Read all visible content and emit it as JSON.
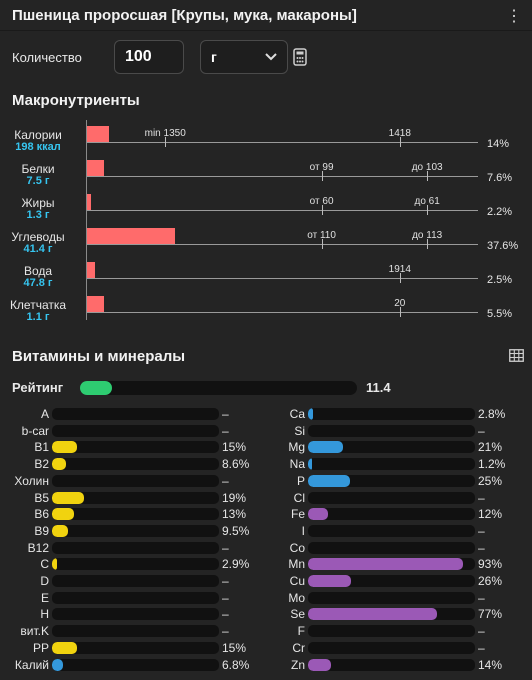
{
  "header": {
    "title": "Пшеница проросшая [Крупы, мука, макароны]"
  },
  "quantity": {
    "label": "Количество",
    "value": "100",
    "unit": "г"
  },
  "macros": {
    "title": "Макронутриенты",
    "items": [
      {
        "name": "Калории",
        "value": "198 ккал",
        "fraction": 0.056,
        "pct": "14%",
        "marks": [
          {
            "label": "min 1350",
            "pos": 0.2
          },
          {
            "label": "1418",
            "pos": 0.8
          }
        ]
      },
      {
        "name": "Белки",
        "value": "7.5 г",
        "fraction": 0.043,
        "pct": "7.6%",
        "marks": [
          {
            "label": "от 99",
            "pos": 0.6
          },
          {
            "label": "до 103",
            "pos": 0.87
          }
        ]
      },
      {
        "name": "Жиры",
        "value": "1.3 г",
        "fraction": 0.01,
        "pct": "2.2%",
        "marks": [
          {
            "label": "от 60",
            "pos": 0.6
          },
          {
            "label": "до 61",
            "pos": 0.87
          }
        ]
      },
      {
        "name": "Углеводы",
        "value": "41.4 г",
        "fraction": 0.228,
        "pct": "37.6%",
        "marks": [
          {
            "label": "от 110",
            "pos": 0.6
          },
          {
            "label": "до 113",
            "pos": 0.87
          }
        ]
      },
      {
        "name": "Вода",
        "value": "47.8 г",
        "fraction": 0.02,
        "pct": "2.5%",
        "marks": [
          {
            "label": "1914",
            "pos": 0.8
          }
        ]
      },
      {
        "name": "Клетчатка",
        "value": "1.1 г",
        "fraction": 0.043,
        "pct": "5.5%",
        "marks": [
          {
            "label": "20",
            "pos": 0.8
          }
        ]
      }
    ]
  },
  "vitamins": {
    "title": "Витамины и минералы",
    "rating": {
      "label": "Рейтинг",
      "value": "11.4",
      "fraction": 0.115,
      "color": "#2ecc71"
    },
    "left": [
      {
        "name": "A",
        "pct": "–",
        "fraction": 0
      },
      {
        "name": "b-car",
        "pct": "–",
        "fraction": 0
      },
      {
        "name": "B1",
        "pct": "15%",
        "fraction": 0.15,
        "color": "#f1d30f"
      },
      {
        "name": "B2",
        "pct": "8.6%",
        "fraction": 0.086,
        "color": "#f1d30f"
      },
      {
        "name": "Холин",
        "pct": "–",
        "fraction": 0
      },
      {
        "name": "B5",
        "pct": "19%",
        "fraction": 0.19,
        "color": "#f1d30f"
      },
      {
        "name": "B6",
        "pct": "13%",
        "fraction": 0.13,
        "color": "#f1d30f"
      },
      {
        "name": "B9",
        "pct": "9.5%",
        "fraction": 0.095,
        "color": "#f1d30f"
      },
      {
        "name": "B12",
        "pct": "–",
        "fraction": 0
      },
      {
        "name": "C",
        "pct": "2.9%",
        "fraction": 0.029,
        "color": "#f1d30f"
      },
      {
        "name": "D",
        "pct": "–",
        "fraction": 0
      },
      {
        "name": "E",
        "pct": "–",
        "fraction": 0
      },
      {
        "name": "H",
        "pct": "–",
        "fraction": 0
      },
      {
        "name": "вит.K",
        "pct": "–",
        "fraction": 0
      },
      {
        "name": "PP",
        "pct": "15%",
        "fraction": 0.15,
        "color": "#f1d30f"
      },
      {
        "name": "Калий",
        "pct": "6.8%",
        "fraction": 0.068,
        "color": "#3498db"
      }
    ],
    "right": [
      {
        "name": "Ca",
        "pct": "2.8%",
        "fraction": 0.028,
        "color": "#3498db"
      },
      {
        "name": "Si",
        "pct": "–",
        "fraction": 0
      },
      {
        "name": "Mg",
        "pct": "21%",
        "fraction": 0.21,
        "color": "#3498db"
      },
      {
        "name": "Na",
        "pct": "1.2%",
        "fraction": 0.012,
        "color": "#3498db"
      },
      {
        "name": "P",
        "pct": "25%",
        "fraction": 0.25,
        "color": "#3498db"
      },
      {
        "name": "Cl",
        "pct": "–",
        "fraction": 0
      },
      {
        "name": "Fe",
        "pct": "12%",
        "fraction": 0.12,
        "color": "#9b59b6"
      },
      {
        "name": "I",
        "pct": "–",
        "fraction": 0
      },
      {
        "name": "Co",
        "pct": "–",
        "fraction": 0
      },
      {
        "name": "Mn",
        "pct": "93%",
        "fraction": 0.93,
        "color": "#9b59b6"
      },
      {
        "name": "Cu",
        "pct": "26%",
        "fraction": 0.26,
        "color": "#9b59b6"
      },
      {
        "name": "Mo",
        "pct": "–",
        "fraction": 0
      },
      {
        "name": "Se",
        "pct": "77%",
        "fraction": 0.77,
        "color": "#9b59b6"
      },
      {
        "name": "F",
        "pct": "–",
        "fraction": 0
      },
      {
        "name": "Cr",
        "pct": "–",
        "fraction": 0
      },
      {
        "name": "Zn",
        "pct": "14%",
        "fraction": 0.14,
        "color": "#9b59b6"
      }
    ]
  }
}
